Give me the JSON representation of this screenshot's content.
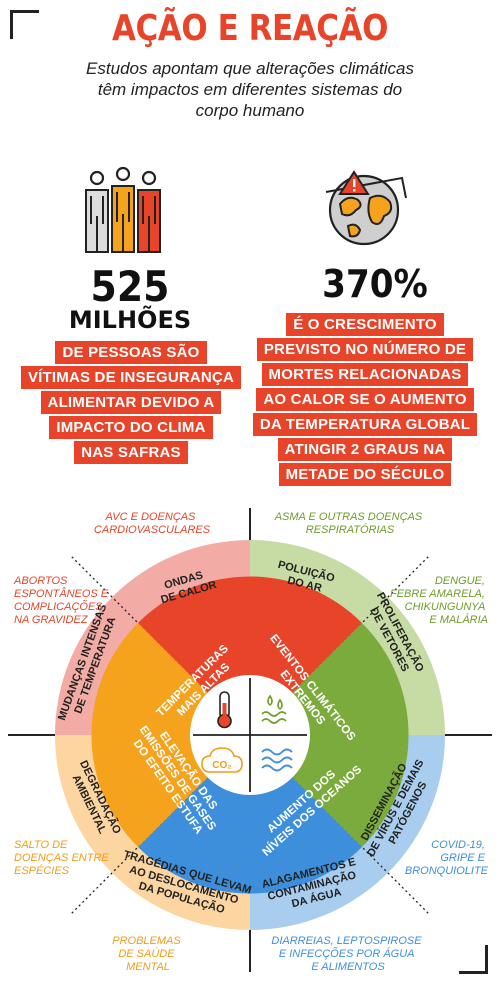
{
  "header": {
    "title": "AÇÃO E REAÇÃO",
    "subtitle": "Estudos apontam que alterações climáticas\ntêm impactos em diferentes sistemas do\ncorpo humano"
  },
  "stat_left": {
    "number": "525",
    "unit": "MILHÕES",
    "lines": [
      "DE PESSOAS SÃO",
      "VÍTIMAS DE INSEGURANÇA",
      "ALIMENTAR DEVIDO A",
      "IMPACTO DO CLIMA",
      "NAS SAFRAS"
    ]
  },
  "stat_right": {
    "number": "370%",
    "lines": [
      "É O CRESCIMENTO",
      "PREVISTO NO NÚMERO DE",
      "MORTES RELACIONADAS",
      "AO CALOR SE O AUMENTO",
      "DA TEMPERATURA GLOBAL",
      "ATINGIR 2 GRAUS NA",
      "METADE DO SÉCULO"
    ]
  },
  "colors": {
    "red": "#e8442a",
    "green": "#7cab3d",
    "blue": "#3d8fdb",
    "orange": "#f5a31d",
    "pink": "#f3aba5",
    "lightgreen": "#c7dba5",
    "lightblue": "#a9cdef",
    "peach": "#fdd5a0",
    "side_red": "#e8442a",
    "side_green": "#6f9c2a",
    "side_blue": "#3d8fdb",
    "side_orange": "#f09d1a"
  },
  "icons": [
    "people-icon",
    "globe-warning-icon",
    "thermometer-icon",
    "drops-waves-icon",
    "co2-cloud-icon",
    "water-waves-icon"
  ],
  "diagram": {
    "core": {
      "temperaturas": [
        "TEMPERATURAS",
        "MAIS ALTAS"
      ],
      "eventos": [
        "EVENTOS CLIMÁTICOS",
        "EXTREMOS"
      ],
      "oceanos": [
        "AUMENTO DOS",
        "NÍVEIS DOS OCEANOS"
      ],
      "gases": [
        "ELEVAÇÃO DAS",
        "EMISSÕES DE GASES",
        "DO EFEITO ESTUFA"
      ],
      "co2": "CO₂"
    },
    "ring": {
      "ondas": [
        "ONDAS",
        "DE CALOR"
      ],
      "poluicao": [
        "POLUIÇÃO",
        "DO AR"
      ],
      "proliferacao": [
        "PROLIFERAÇÃO",
        "DE VETORES"
      ],
      "mudancas": [
        "MUDANÇAS INTENSAS",
        "DE TEMPERATURA"
      ],
      "degradacao": [
        "DEGRADAÇÃO",
        "AMBIENTAL"
      ],
      "disseminacao": [
        "DISSEMINAÇÃO",
        "DE VÍRUS E DEMAIS",
        "PATÓGENOS"
      ],
      "tragedias": [
        "TRAGÉDIAS QUE LEVAM",
        "AO DESLOCAMENTO",
        "DA POPULAÇÃO"
      ],
      "alagamentos": [
        "ALAGAMENTOS E",
        "CONTAMINAÇÃO",
        "DA ÁGUA"
      ]
    },
    "outer": {
      "avc": [
        "AVC E DOENÇAS",
        "CARDIOVASCULARES"
      ],
      "asma": [
        "ASMA E OUTRAS DOENÇAS",
        "RESPIRATÓRIAS"
      ],
      "abortos": [
        "ABORTOS",
        "ESPONTÂNEOS E",
        "COMPLICAÇÕES",
        "NA GRAVIDEZ"
      ],
      "dengue": [
        "DENGUE,",
        "FEBRE AMARELA,",
        "CHIKUNGUNYA",
        "E MALÁRIA"
      ],
      "salto": [
        "SALTO DE",
        "DOENÇAS ENTRE",
        "ESPÉCIES"
      ],
      "covid": [
        "COVID-19,",
        "GRIPE E",
        "BRONQUIOLITE"
      ],
      "problemas": [
        "PROBLEMAS",
        "DE SAÚDE",
        "MENTAL"
      ],
      "diarreias": [
        "DIARREIAS, LEPTOSPIROSE",
        "E INFECÇÕES POR ÁGUA",
        "E ALIMENTOS"
      ]
    }
  }
}
